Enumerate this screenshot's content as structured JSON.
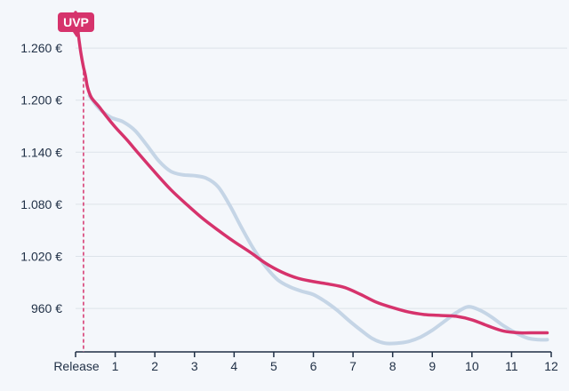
{
  "chart_data": {
    "type": "line",
    "title": "",
    "xlabel": "",
    "ylabel": "",
    "xlim": [
      0,
      12
    ],
    "ylim": [
      910,
      1300
    ],
    "yticks": [
      960,
      1020,
      1080,
      1140,
      1200,
      1260
    ],
    "ytick_labels": [
      "960 €",
      "1.020 €",
      "1.080 €",
      "1.140 €",
      "1.200 €",
      "1.260 €"
    ],
    "xticks": [
      0,
      1,
      2,
      3,
      4,
      5,
      6,
      7,
      8,
      9,
      10,
      11,
      12
    ],
    "xtick_labels": [
      "Release",
      "1",
      "2",
      "3",
      "4",
      "5",
      "6",
      "7",
      "8",
      "9",
      "10",
      "11",
      "12"
    ],
    "grid": true,
    "annotation": {
      "label": "UVP",
      "x": 0.2,
      "value": 1301
    },
    "series": [
      {
        "color": "#c5d5e6",
        "points": [
          [
            0.35,
            1205
          ],
          [
            0.6,
            1190
          ],
          [
            0.9,
            1180
          ],
          [
            1.2,
            1175
          ],
          [
            1.5,
            1165
          ],
          [
            1.8,
            1148
          ],
          [
            2.1,
            1130
          ],
          [
            2.4,
            1118
          ],
          [
            2.7,
            1114
          ],
          [
            3.0,
            1113
          ],
          [
            3.3,
            1110
          ],
          [
            3.6,
            1100
          ],
          [
            3.9,
            1078
          ],
          [
            4.2,
            1052
          ],
          [
            4.5,
            1028
          ],
          [
            4.8,
            1008
          ],
          [
            5.1,
            993
          ],
          [
            5.4,
            985
          ],
          [
            5.7,
            980
          ],
          [
            6.0,
            976
          ],
          [
            6.3,
            968
          ],
          [
            6.6,
            958
          ],
          [
            6.9,
            946
          ],
          [
            7.2,
            935
          ],
          [
            7.5,
            925
          ],
          [
            7.8,
            920
          ],
          [
            8.1,
            920
          ],
          [
            8.4,
            922
          ],
          [
            8.7,
            927
          ],
          [
            9.0,
            935
          ],
          [
            9.3,
            945
          ],
          [
            9.6,
            955
          ],
          [
            9.9,
            962
          ],
          [
            10.2,
            958
          ],
          [
            10.5,
            950
          ],
          [
            10.8,
            940
          ],
          [
            11.1,
            932
          ],
          [
            11.4,
            926
          ],
          [
            11.7,
            924
          ],
          [
            11.9,
            924
          ]
        ]
      },
      {
        "color": "#d6336c",
        "points": [
          [
            0.0,
            1301
          ],
          [
            0.05,
            1283
          ],
          [
            0.1,
            1265
          ],
          [
            0.15,
            1250
          ],
          [
            0.2,
            1238
          ],
          [
            0.25,
            1228
          ],
          [
            0.3,
            1215
          ],
          [
            0.4,
            1203
          ],
          [
            0.6,
            1192
          ],
          [
            0.8,
            1180
          ],
          [
            1.0,
            1169
          ],
          [
            1.3,
            1154
          ],
          [
            1.6,
            1138
          ],
          [
            2.0,
            1117
          ],
          [
            2.4,
            1097
          ],
          [
            2.8,
            1080
          ],
          [
            3.2,
            1064
          ],
          [
            3.6,
            1050
          ],
          [
            4.0,
            1037
          ],
          [
            4.4,
            1025
          ],
          [
            4.8,
            1012
          ],
          [
            5.2,
            1002
          ],
          [
            5.6,
            995
          ],
          [
            6.0,
            991
          ],
          [
            6.4,
            988
          ],
          [
            6.8,
            984
          ],
          [
            7.2,
            976
          ],
          [
            7.6,
            967
          ],
          [
            8.0,
            961
          ],
          [
            8.4,
            956
          ],
          [
            8.8,
            953
          ],
          [
            9.2,
            952
          ],
          [
            9.6,
            951
          ],
          [
            10.0,
            947
          ],
          [
            10.4,
            940
          ],
          [
            10.8,
            934
          ],
          [
            11.2,
            932
          ],
          [
            11.6,
            932
          ],
          [
            11.9,
            932
          ]
        ]
      }
    ]
  }
}
